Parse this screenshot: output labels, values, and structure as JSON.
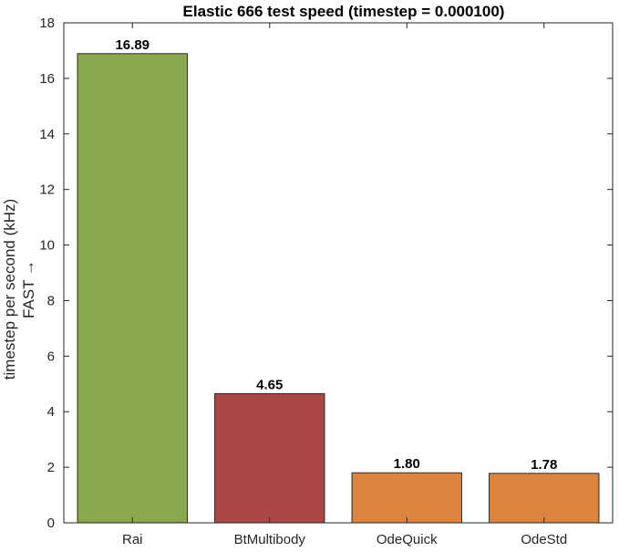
{
  "chart_data": {
    "type": "bar",
    "title": "Elastic 666 test speed (timestep = 0.000100)",
    "ylabel_line1": "timestep per second (kHz)",
    "ylabel_line2": "FAST →",
    "xlabel": "",
    "categories": [
      "Rai",
      "BtMultibody",
      "OdeQuick",
      "OdeStd"
    ],
    "values": [
      16.89,
      4.65,
      1.8,
      1.78
    ],
    "value_labels": [
      "16.89",
      "4.65",
      "1.80",
      "1.78"
    ],
    "bar_colors": [
      "#8aa84e",
      "#a84745",
      "#dc843f",
      "#dc843f"
    ],
    "ylim": [
      0,
      18
    ],
    "yticks": [
      0,
      2,
      4,
      6,
      8,
      10,
      12,
      14,
      16,
      18
    ],
    "grid": false
  }
}
